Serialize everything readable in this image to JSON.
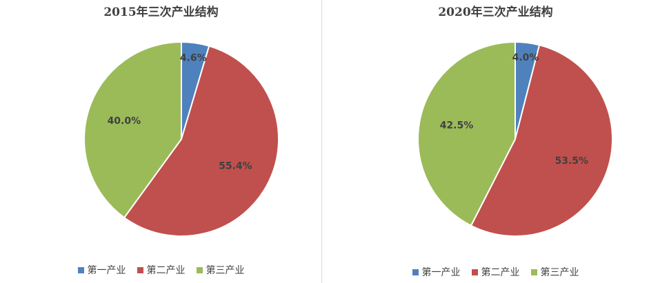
{
  "colors": {
    "primary": "#4f81bd",
    "secondary": "#c0504d",
    "tertiary": "#9bbb59"
  },
  "chart_data": [
    {
      "type": "pie",
      "title": "2015年三次产业结构",
      "categories": [
        "第一产业",
        "第二产业",
        "第三产业"
      ],
      "values": [
        4.6,
        55.4,
        40.0
      ],
      "labels": [
        "4.6%",
        "55.4%",
        "40.0%"
      ],
      "legend": "bottom"
    },
    {
      "type": "pie",
      "title": "2020年三次产业结构",
      "categories": [
        "第一产业",
        "第二产业",
        "第三产业"
      ],
      "values": [
        4.0,
        53.5,
        42.5
      ],
      "labels": [
        "4.0%",
        "53.5%",
        "42.5%"
      ],
      "legend": "bottom"
    }
  ]
}
